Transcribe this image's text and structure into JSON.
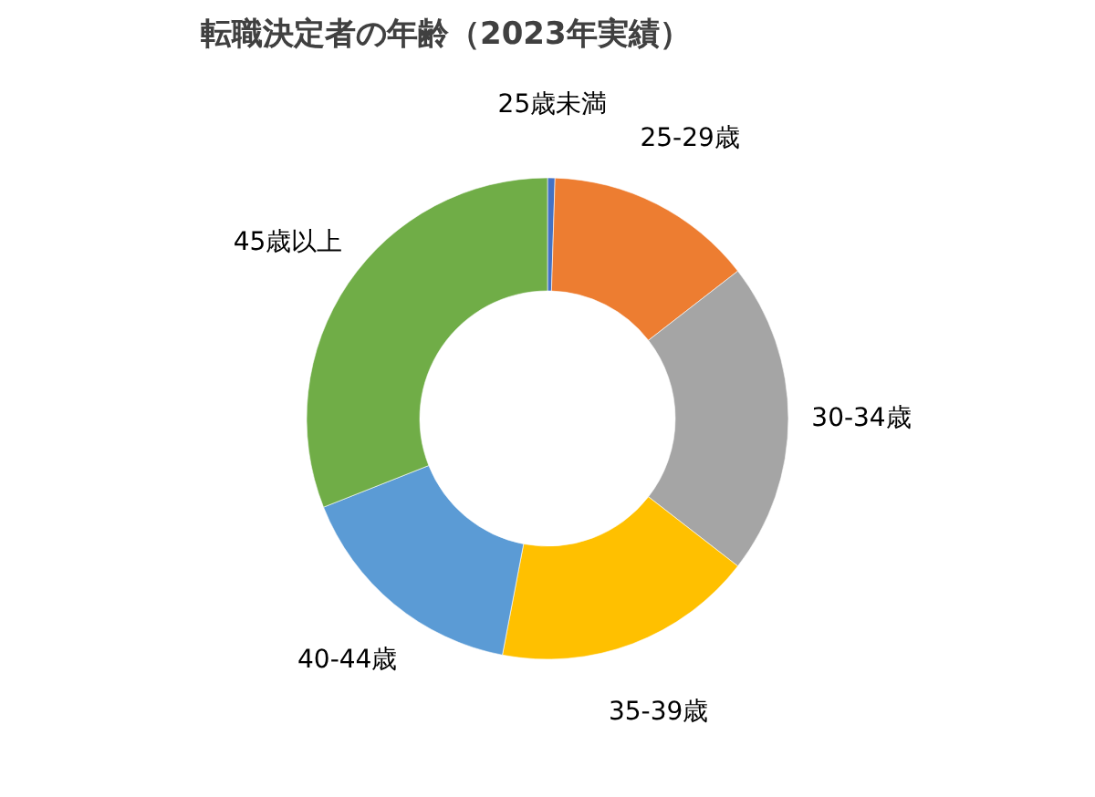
{
  "chart_data": {
    "type": "donut",
    "title": "転職決定者の年齢（2023年実績）",
    "categories": [
      "25歳未満",
      "25-29歳",
      "30-34歳",
      "35-39歳",
      "40-44歳",
      "45歳以上"
    ],
    "values": [
      0.5,
      14,
      21,
      17.5,
      16,
      31
    ],
    "colors": [
      "#4472c4",
      "#ed7d31",
      "#a5a5a5",
      "#ffc000",
      "#5b9bd5",
      "#70ad47"
    ],
    "legend": false
  }
}
